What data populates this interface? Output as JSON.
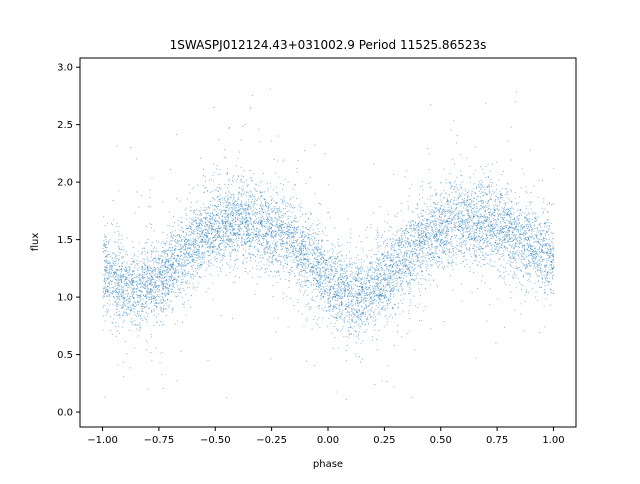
{
  "chart_data": {
    "type": "scatter",
    "title": "1SWASPJ012124.43+031002.9 Period 11525.86523s",
    "xlabel": "phase",
    "ylabel": "flux",
    "xlim": [
      -1.1,
      1.1
    ],
    "ylim": [
      -0.13,
      3.08
    ],
    "x_ticks": [
      -1.0,
      -0.75,
      -0.5,
      -0.25,
      0.0,
      0.25,
      0.5,
      0.75,
      1.0
    ],
    "x_tick_labels": [
      "−1.00",
      "−0.75",
      "−0.50",
      "−0.25",
      "0.00",
      "0.25",
      "0.50",
      "0.75",
      "1.00"
    ],
    "y_ticks": [
      0.0,
      0.5,
      1.0,
      1.5,
      2.0,
      2.5,
      3.0
    ],
    "y_tick_labels": [
      "0.0",
      "0.5",
      "1.0",
      "1.5",
      "2.0",
      "2.5",
      "3.0"
    ],
    "grid": false,
    "legend": "none",
    "marker_color": "#1f77b4",
    "series": [
      {
        "phase_range": [
          -1.0,
          1.0
        ],
        "model_phase": [
          -1.0,
          -0.875,
          -0.75,
          -0.625,
          -0.5,
          -0.375,
          -0.25,
          -0.125,
          0.0,
          0.125,
          0.25,
          0.375,
          0.5,
          0.625,
          0.75,
          0.875,
          1.0
        ],
        "model_flux": [
          1.22,
          1.08,
          1.15,
          1.42,
          1.6,
          1.66,
          1.6,
          1.42,
          1.15,
          1.03,
          1.15,
          1.42,
          1.6,
          1.68,
          1.62,
          1.48,
          1.35
        ],
        "scatter_sd": 0.18
      }
    ]
  }
}
